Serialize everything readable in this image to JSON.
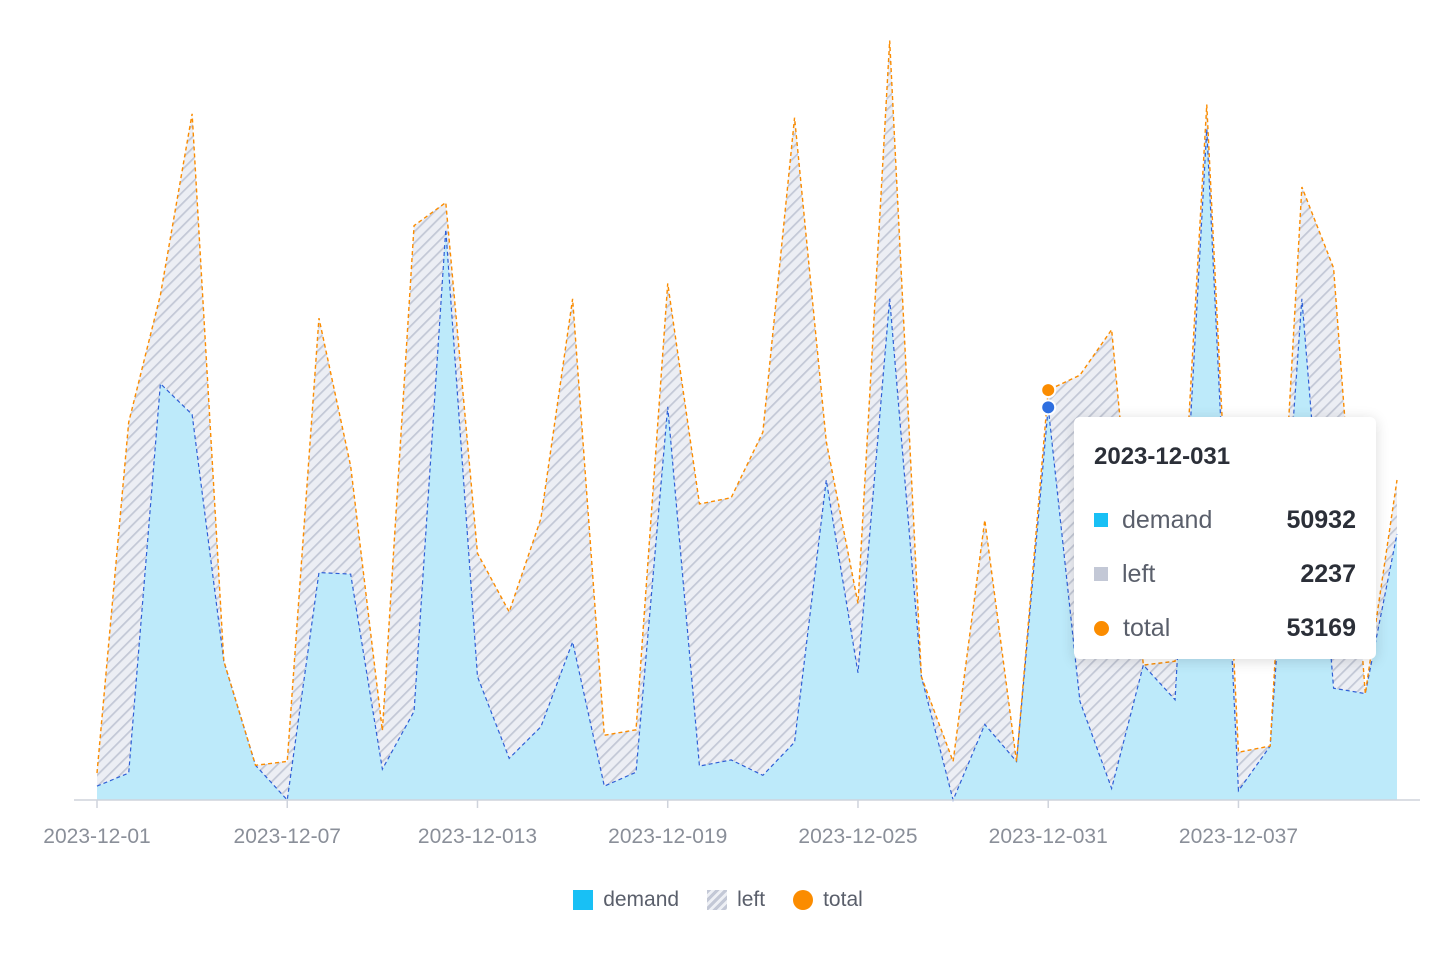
{
  "chart_data": {
    "type": "area",
    "stacked": true,
    "x": [
      "2023-12-01",
      "2023-12-02",
      "2023-12-03",
      "2023-12-04",
      "2023-12-05",
      "2023-12-06",
      "2023-12-07",
      "2023-12-08",
      "2023-12-09",
      "2023-12-010",
      "2023-12-011",
      "2023-12-012",
      "2023-12-013",
      "2023-12-014",
      "2023-12-015",
      "2023-12-016",
      "2023-12-017",
      "2023-12-018",
      "2023-12-019",
      "2023-12-020",
      "2023-12-021",
      "2023-12-022",
      "2023-12-023",
      "2023-12-024",
      "2023-12-025",
      "2023-12-026",
      "2023-12-027",
      "2023-12-028",
      "2023-12-029",
      "2023-12-030",
      "2023-12-031",
      "2023-12-032",
      "2023-12-033",
      "2023-12-034",
      "2023-12-035",
      "2023-12-036",
      "2023-12-037",
      "2023-12-038",
      "2023-12-039",
      "2023-12-040",
      "2023-12-041",
      "2023-12-042"
    ],
    "x_tick_labels": [
      "2023-12-01",
      "2023-12-07",
      "2023-12-013",
      "2023-12-019",
      "2023-12-025",
      "2023-12-031",
      "2023-12-037"
    ],
    "series": [
      {
        "name": "demand",
        "color": "#18c0f5",
        "values": [
          1800,
          3500,
          54000,
          50000,
          18000,
          4500,
          0,
          29500,
          29300,
          4000,
          11500,
          74000,
          16000,
          5400,
          9500,
          20500,
          1800,
          3600,
          51000,
          4400,
          5200,
          3200,
          7500,
          41500,
          16500,
          65000,
          16000,
          0,
          9800,
          5000,
          50932,
          12800,
          1500,
          17500,
          13000,
          87000,
          1200,
          7000,
          65000,
          14500,
          13800,
          34500
        ]
      },
      {
        "name": "left",
        "color": "#c3c8d6",
        "values": [
          1700,
          45500,
          11500,
          39000,
          0,
          0,
          5000,
          33000,
          14000,
          5000,
          63000,
          3500,
          16000,
          19000,
          27000,
          44500,
          6600,
          5500,
          16000,
          34000,
          34000,
          44500,
          81000,
          5000,
          9000,
          33500,
          0,
          5000,
          26500,
          0,
          2237,
          42300,
          59500,
          0,
          5000,
          3200,
          5000,
          0,
          14500,
          54500,
          0,
          7000
        ]
      },
      {
        "name": "total",
        "color": "#fb8c00",
        "values": [
          3500,
          49000,
          65500,
          89000,
          18000,
          4500,
          5000,
          62500,
          43300,
          9000,
          74500,
          77500,
          32000,
          24400,
          36500,
          65000,
          8400,
          9100,
          67000,
          38400,
          39200,
          47700,
          88500,
          46500,
          25500,
          98500,
          16000,
          5000,
          36300,
          5000,
          53169,
          55100,
          61000,
          17500,
          18000,
          90200,
          6200,
          7000,
          79500,
          69000,
          13800,
          41500
        ]
      }
    ],
    "ylim": [
      0,
      100000
    ],
    "grid": false,
    "legend": "bottom",
    "tooltip": {
      "title": "2023-12-031",
      "rows": [
        {
          "name": "demand",
          "value": "50932"
        },
        {
          "name": "left",
          "value": "2237"
        },
        {
          "name": "total",
          "value": "53169"
        }
      ]
    }
  }
}
